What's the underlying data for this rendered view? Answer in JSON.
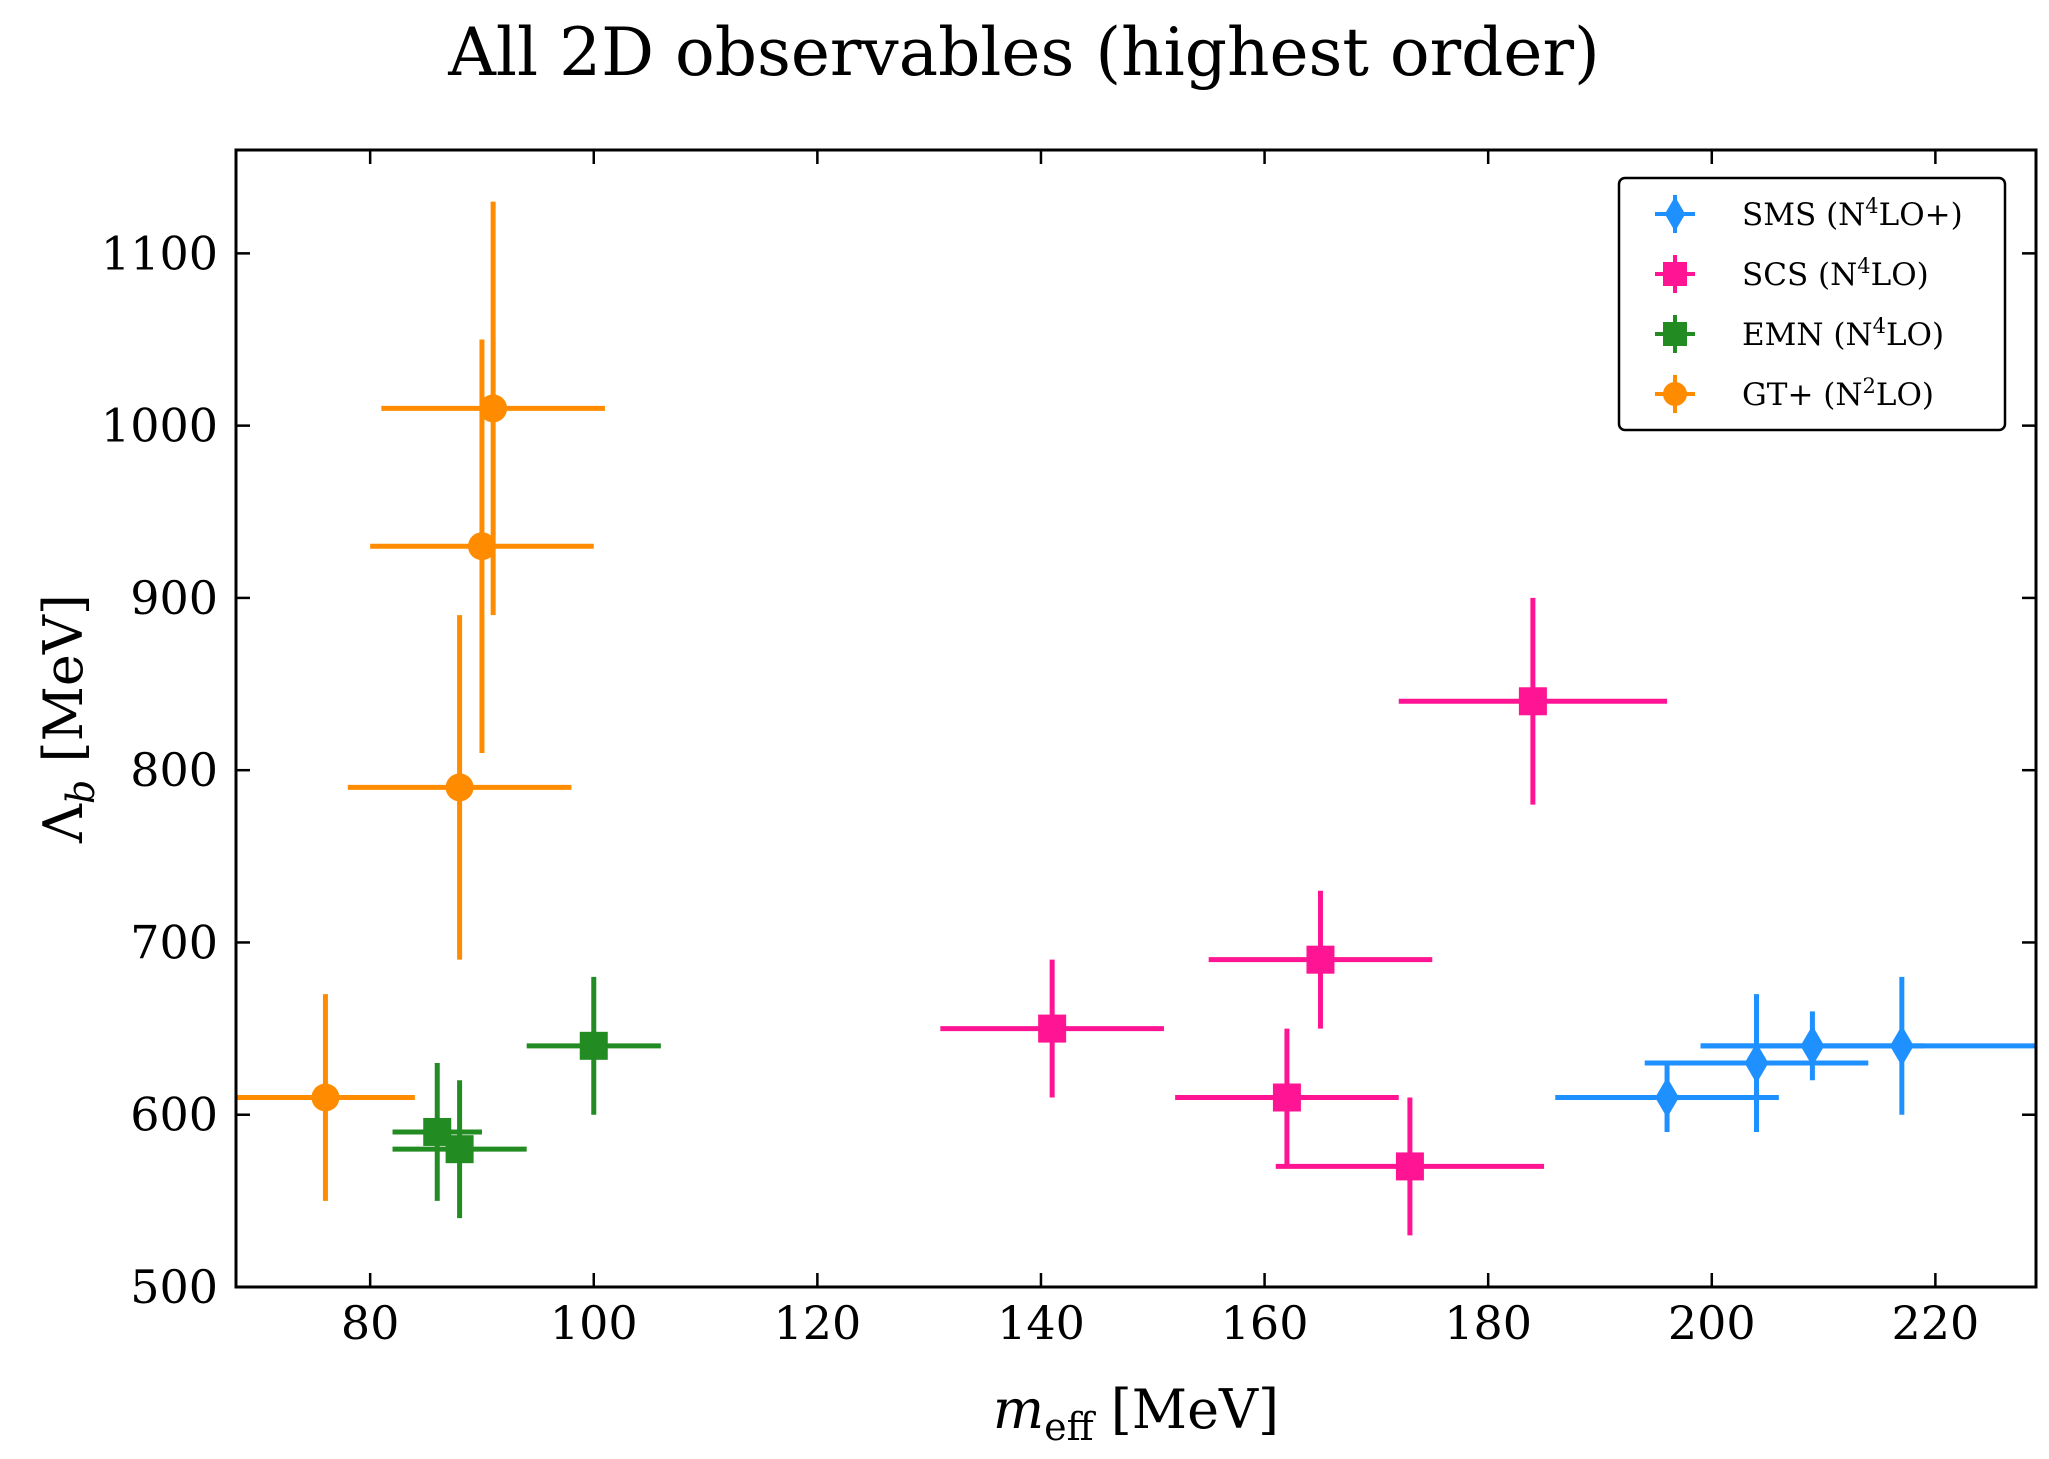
{
  "chart_data": {
    "type": "scatter",
    "title": "All 2D observables (highest order)",
    "xlabel": {
      "main": "m",
      "sub": "eff",
      "unit": " [MeV]"
    },
    "ylabel": {
      "main": "Λ",
      "sub": "b",
      "unit": " [MeV]"
    },
    "xlim": [
      68,
      229
    ],
    "ylim": [
      500,
      1160
    ],
    "xticks": [
      80,
      100,
      120,
      140,
      160,
      180,
      200,
      220
    ],
    "yticks": [
      500,
      600,
      700,
      800,
      900,
      1000,
      1100
    ],
    "grid": false,
    "legend_position": "top-right",
    "series": [
      {
        "name": "SMS (N4LO+)",
        "label_parts": {
          "pre": "SMS (N",
          "sup": "4",
          "post": "LO+)"
        },
        "color": "#1e90ff",
        "marker": "diamond",
        "points": [
          {
            "x": 196,
            "y": 610,
            "xerr": 10,
            "yerr": 20
          },
          {
            "x": 204,
            "y": 630,
            "xerr": 10,
            "yerr": 40
          },
          {
            "x": 209,
            "y": 640,
            "xerr": 10,
            "yerr": 20
          },
          {
            "x": 217,
            "y": 640,
            "xerr": 18,
            "yerr": 40
          }
        ]
      },
      {
        "name": "SCS (N4LO)",
        "label_parts": {
          "pre": "SCS (N",
          "sup": "4",
          "post": "LO)"
        },
        "color": "#ff1493",
        "marker": "square",
        "points": [
          {
            "x": 141,
            "y": 650,
            "xerr": 10,
            "yerr": 40
          },
          {
            "x": 165,
            "y": 690,
            "xerr": 10,
            "yerr": 40
          },
          {
            "x": 162,
            "y": 610,
            "xerr": 10,
            "yerr": 40
          },
          {
            "x": 173,
            "y": 570,
            "xerr": 12,
            "yerr": 40
          },
          {
            "x": 184,
            "y": 840,
            "xerr": 12,
            "yerr": 60
          }
        ]
      },
      {
        "name": "EMN (N4LO)",
        "label_parts": {
          "pre": "EMN (N",
          "sup": "4",
          "post": "LO)"
        },
        "color": "#228b22",
        "marker": "square",
        "points": [
          {
            "x": 86,
            "y": 590,
            "xerr": 4,
            "yerr": 40
          },
          {
            "x": 88,
            "y": 580,
            "xerr": 6,
            "yerr": 40
          },
          {
            "x": 100,
            "y": 640,
            "xerr": 6,
            "yerr": 40
          }
        ]
      },
      {
        "name": "GT+ (N2LO)",
        "label_parts": {
          "pre": "GT+ (N",
          "sup": "2",
          "post": "LO)"
        },
        "color": "#ff8c00",
        "marker": "circle",
        "points": [
          {
            "x": 76,
            "y": 610,
            "xerr": 8,
            "yerr": 60
          },
          {
            "x": 88,
            "y": 790,
            "xerr": 10,
            "yerr": 100
          },
          {
            "x": 90,
            "y": 930,
            "xerr": 10,
            "yerr": 120
          },
          {
            "x": 91,
            "y": 1010,
            "xerr": 10,
            "yerr": 120
          }
        ]
      }
    ]
  }
}
